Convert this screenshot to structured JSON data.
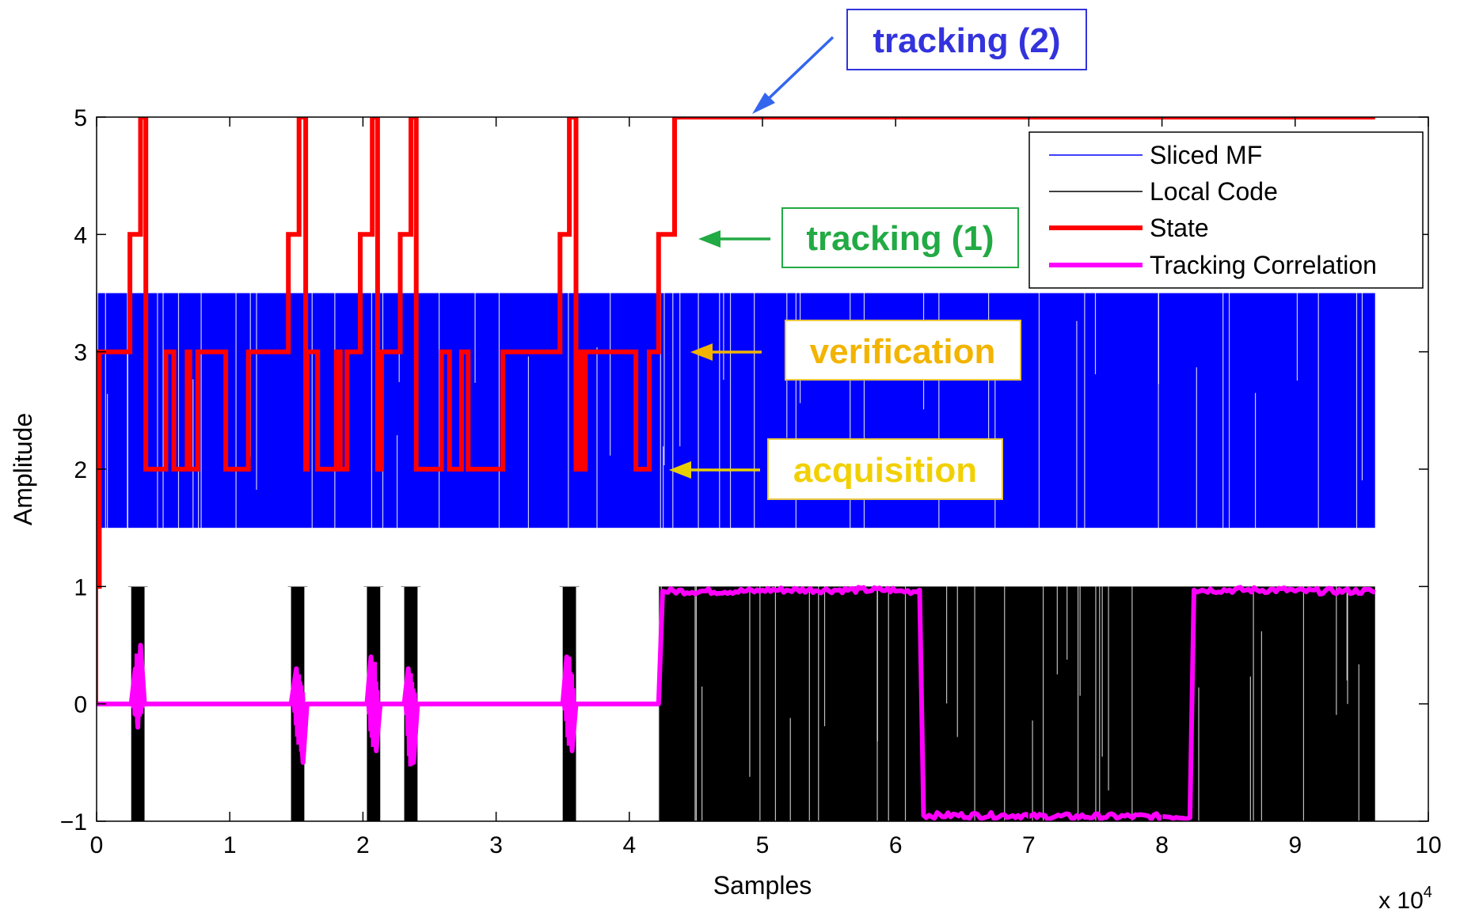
{
  "chart_data": {
    "type": "line",
    "xlabel": "Samples",
    "ylabel": "Amplitude",
    "x_multiplier_label": "x 10",
    "x_multiplier_exponent": "4",
    "xlim": [
      0,
      10
    ],
    "ylim": [
      -1,
      5
    ],
    "x_ticks": [
      "0",
      "1",
      "2",
      "3",
      "4",
      "5",
      "6",
      "7",
      "8",
      "9",
      "10"
    ],
    "y_ticks": [
      "−1",
      "0",
      "1",
      "2",
      "3",
      "4",
      "5"
    ],
    "grid": false,
    "legend_position": "top-right",
    "series": [
      {
        "name": "Sliced MF",
        "color": "#0000ff",
        "style": "dense binary signal",
        "low": 1.5,
        "high": 3.5,
        "x_range": [
          0,
          9.6
        ]
      },
      {
        "name": "Local Code",
        "color": "#000000",
        "style": "dense binary signal",
        "low": -1,
        "high": 1,
        "bursts": [
          [
            0.26,
            0.36
          ],
          [
            1.46,
            1.56
          ],
          [
            2.03,
            2.13
          ],
          [
            2.31,
            2.41
          ],
          [
            3.5,
            3.6
          ]
        ],
        "continuous_from": 4.22,
        "continuous_to": 9.6
      },
      {
        "name": "State",
        "color": "#ff0000",
        "x": [
          0,
          0.02,
          0.02,
          0.05,
          0.05,
          0.25,
          0.25,
          0.33,
          0.33,
          0.37,
          0.37,
          0.52,
          0.52,
          0.58,
          0.58,
          0.68,
          0.68,
          0.7,
          0.7,
          0.76,
          0.76,
          0.8,
          0.8,
          0.97,
          0.97,
          1.14,
          1.14,
          1.44,
          1.44,
          1.52,
          1.52,
          1.57,
          1.57,
          1.58,
          1.58,
          1.62,
          1.62,
          1.66,
          1.66,
          1.8,
          1.8,
          1.83,
          1.83,
          1.88,
          1.88,
          1.98,
          1.98,
          2.07,
          2.07,
          2.11,
          2.11,
          2.14,
          2.14,
          2.28,
          2.28,
          2.36,
          2.36,
          2.4,
          2.4,
          2.59,
          2.59,
          2.65,
          2.65,
          2.74,
          2.74,
          2.79,
          2.79,
          3.05,
          3.05,
          3.2,
          3.2,
          3.48,
          3.48,
          3.55,
          3.55,
          3.6,
          3.6,
          3.62,
          3.62,
          3.65,
          3.65,
          3.67,
          3.67,
          4.05,
          4.05,
          4.15,
          4.15,
          4.22,
          4.22,
          4.34,
          4.34,
          9.6
        ],
        "values": [
          1,
          1,
          3,
          3,
          3,
          3,
          4,
          4,
          5,
          5,
          2,
          2,
          3,
          3,
          2,
          2,
          3,
          3,
          2,
          2,
          3,
          3,
          3,
          3,
          2,
          2,
          3,
          3,
          4,
          4,
          5,
          5,
          2,
          2,
          3,
          3,
          3,
          3,
          2,
          2,
          3,
          3,
          2,
          2,
          3,
          3,
          4,
          4,
          5,
          5,
          2,
          2,
          3,
          3,
          4,
          4,
          5,
          5,
          2,
          2,
          3,
          3,
          2,
          2,
          3,
          3,
          2,
          2,
          3,
          3,
          3,
          3,
          4,
          4,
          5,
          5,
          2,
          2,
          3,
          3,
          2,
          2,
          3,
          3,
          2,
          2,
          3,
          3,
          4,
          4,
          5,
          5
        ]
      },
      {
        "name": "Tracking Correlation",
        "color": "#ff00ff",
        "x": [
          0,
          0.26,
          0.29,
          0.31,
          0.33,
          0.36,
          1.46,
          1.5,
          1.55,
          1.58,
          2.03,
          2.06,
          2.1,
          2.13,
          2.31,
          2.34,
          2.38,
          2.41,
          3.5,
          3.53,
          3.57,
          3.6,
          4.22,
          4.25,
          5.0,
          6.0,
          6.18,
          6.21,
          7.0,
          8.0,
          8.21,
          8.24,
          9.0,
          9.6
        ],
        "values": [
          0,
          0,
          0.3,
          -0.2,
          0.5,
          0,
          0,
          0.3,
          -0.5,
          0,
          0,
          0.4,
          -0.4,
          0,
          0,
          0.3,
          -0.5,
          0,
          0,
          0.4,
          -0.4,
          0,
          0,
          0.96,
          0.97,
          0.96,
          0.97,
          -0.95,
          -0.96,
          -0.96,
          -0.97,
          0.97,
          0.96,
          0.95
        ]
      }
    ],
    "annotations": [
      {
        "text": "tracking (2)",
        "color": "#3333dd",
        "box_color": "#3333dd",
        "arrow_color": "#3366ee",
        "target": [
          4.8,
          5.0
        ]
      },
      {
        "text": "tracking (1)",
        "color": "#22aa44",
        "box_color": "#22aa44",
        "arrow_color": "#22aa44",
        "target": [
          4.4,
          4.0
        ]
      },
      {
        "text": "verification",
        "color": "#f2b400",
        "box_color": "#e8c840",
        "arrow_color": "#f2b400",
        "target": [
          4.4,
          3.0
        ]
      },
      {
        "text": "acquisition",
        "color": "#f2d000",
        "box_color": "#e8c840",
        "arrow_color": "#e8d000",
        "target": [
          4.3,
          2.0
        ]
      }
    ]
  }
}
